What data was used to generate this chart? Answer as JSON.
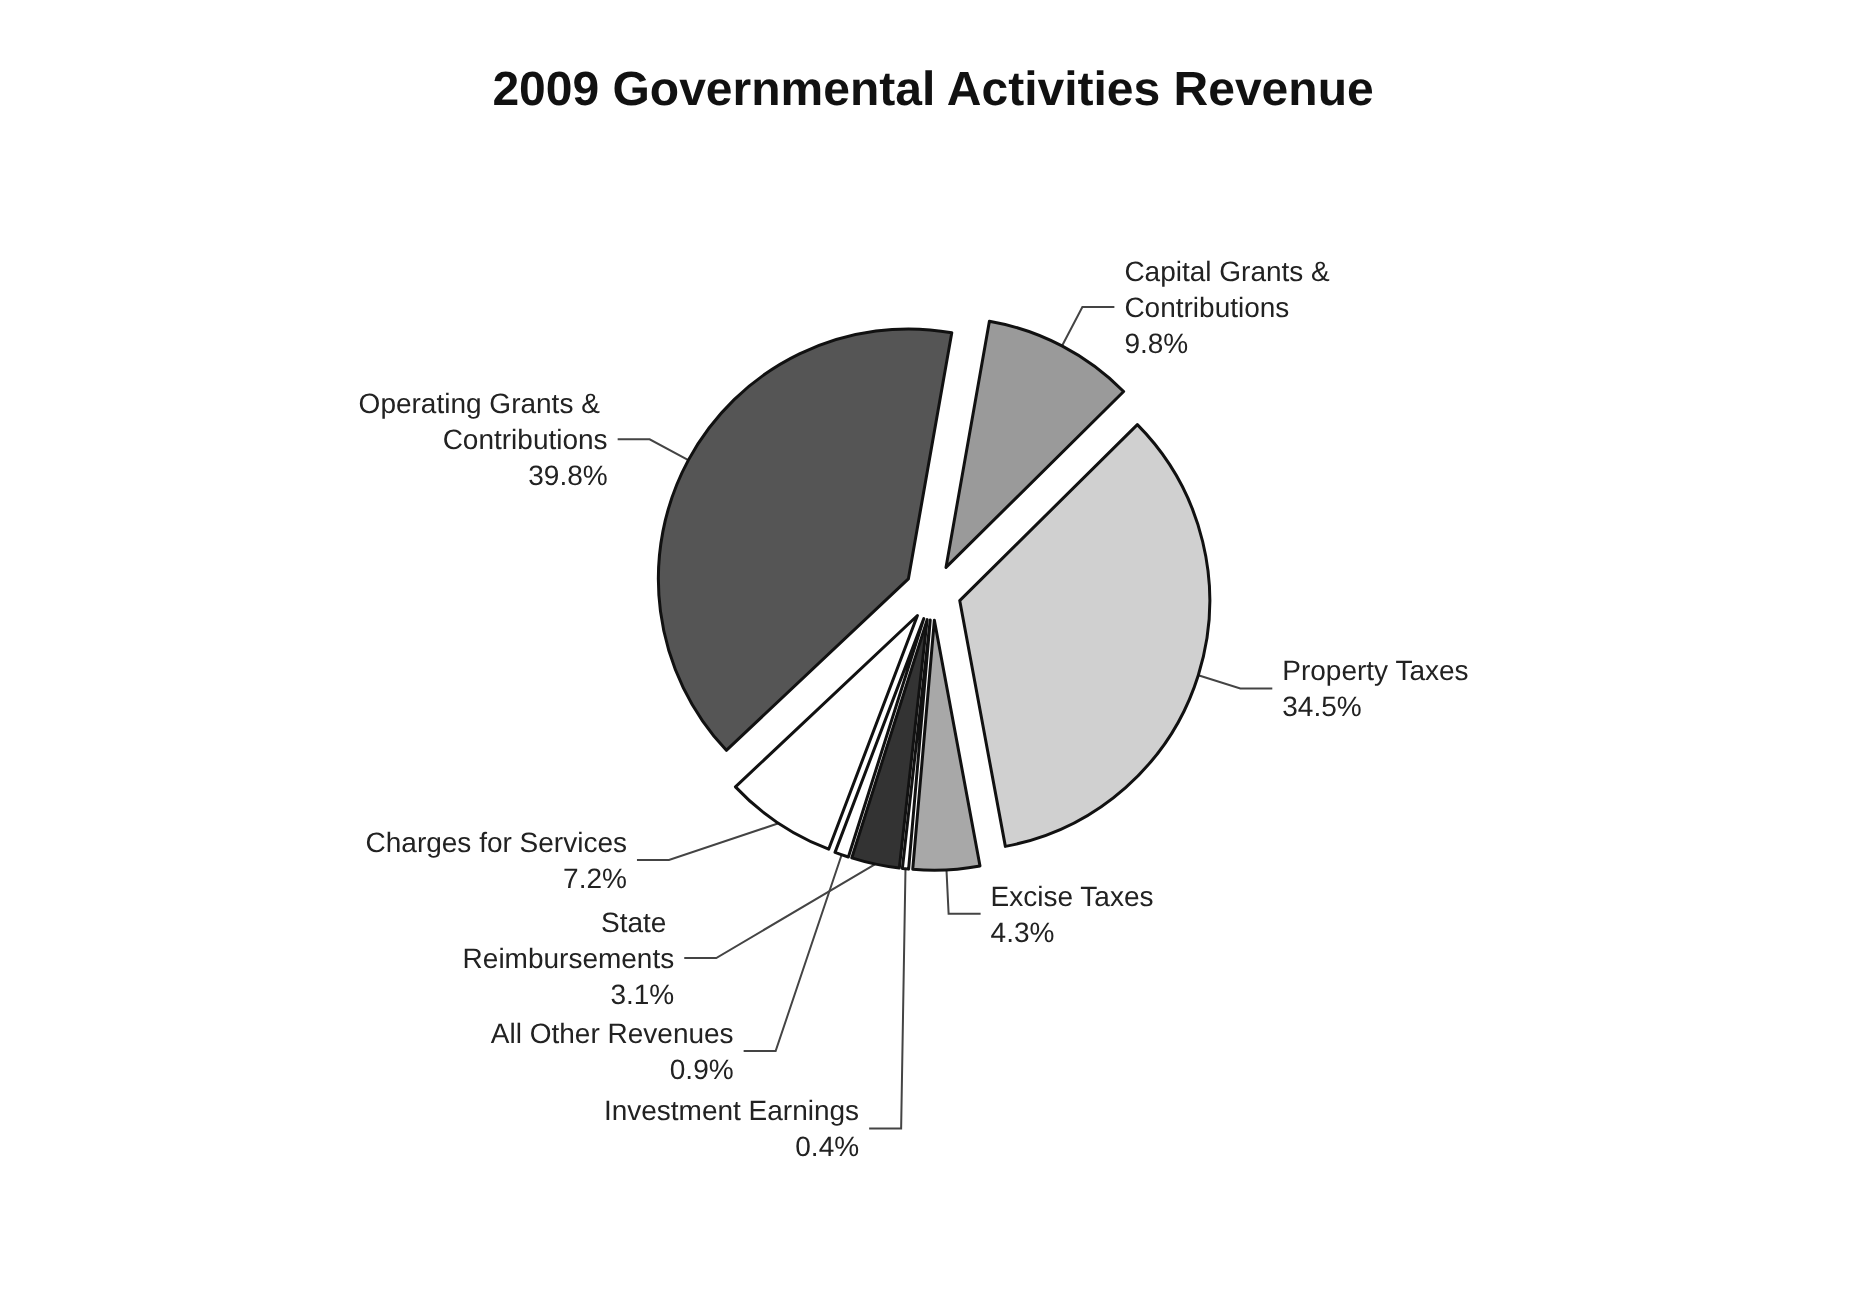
{
  "chart_data": {
    "type": "pie",
    "title": "2009 Governmental Activities Revenue",
    "categories": [
      "Capital Grants & Contributions",
      "Property Taxes",
      "Excise Taxes",
      "Investment Earnings",
      "State Reimbursements",
      "All Other Revenues",
      "Charges for Services",
      "Operating Grants & Contributions"
    ],
    "values": [
      9.8,
      34.5,
      4.3,
      0.4,
      3.1,
      0.9,
      7.2,
      39.8
    ],
    "value_labels": [
      "9.8%",
      "34.5%",
      "4.3%",
      "0.4%",
      "3.1%",
      "0.9%",
      "7.2%",
      "39.8%"
    ],
    "colors": [
      "#9a9a9a",
      "#d0d0d0",
      "#a8a8a8",
      "#ffffff",
      "#333333",
      "#ffffff",
      "#ffffff",
      "#555555"
    ],
    "legend": false
  }
}
